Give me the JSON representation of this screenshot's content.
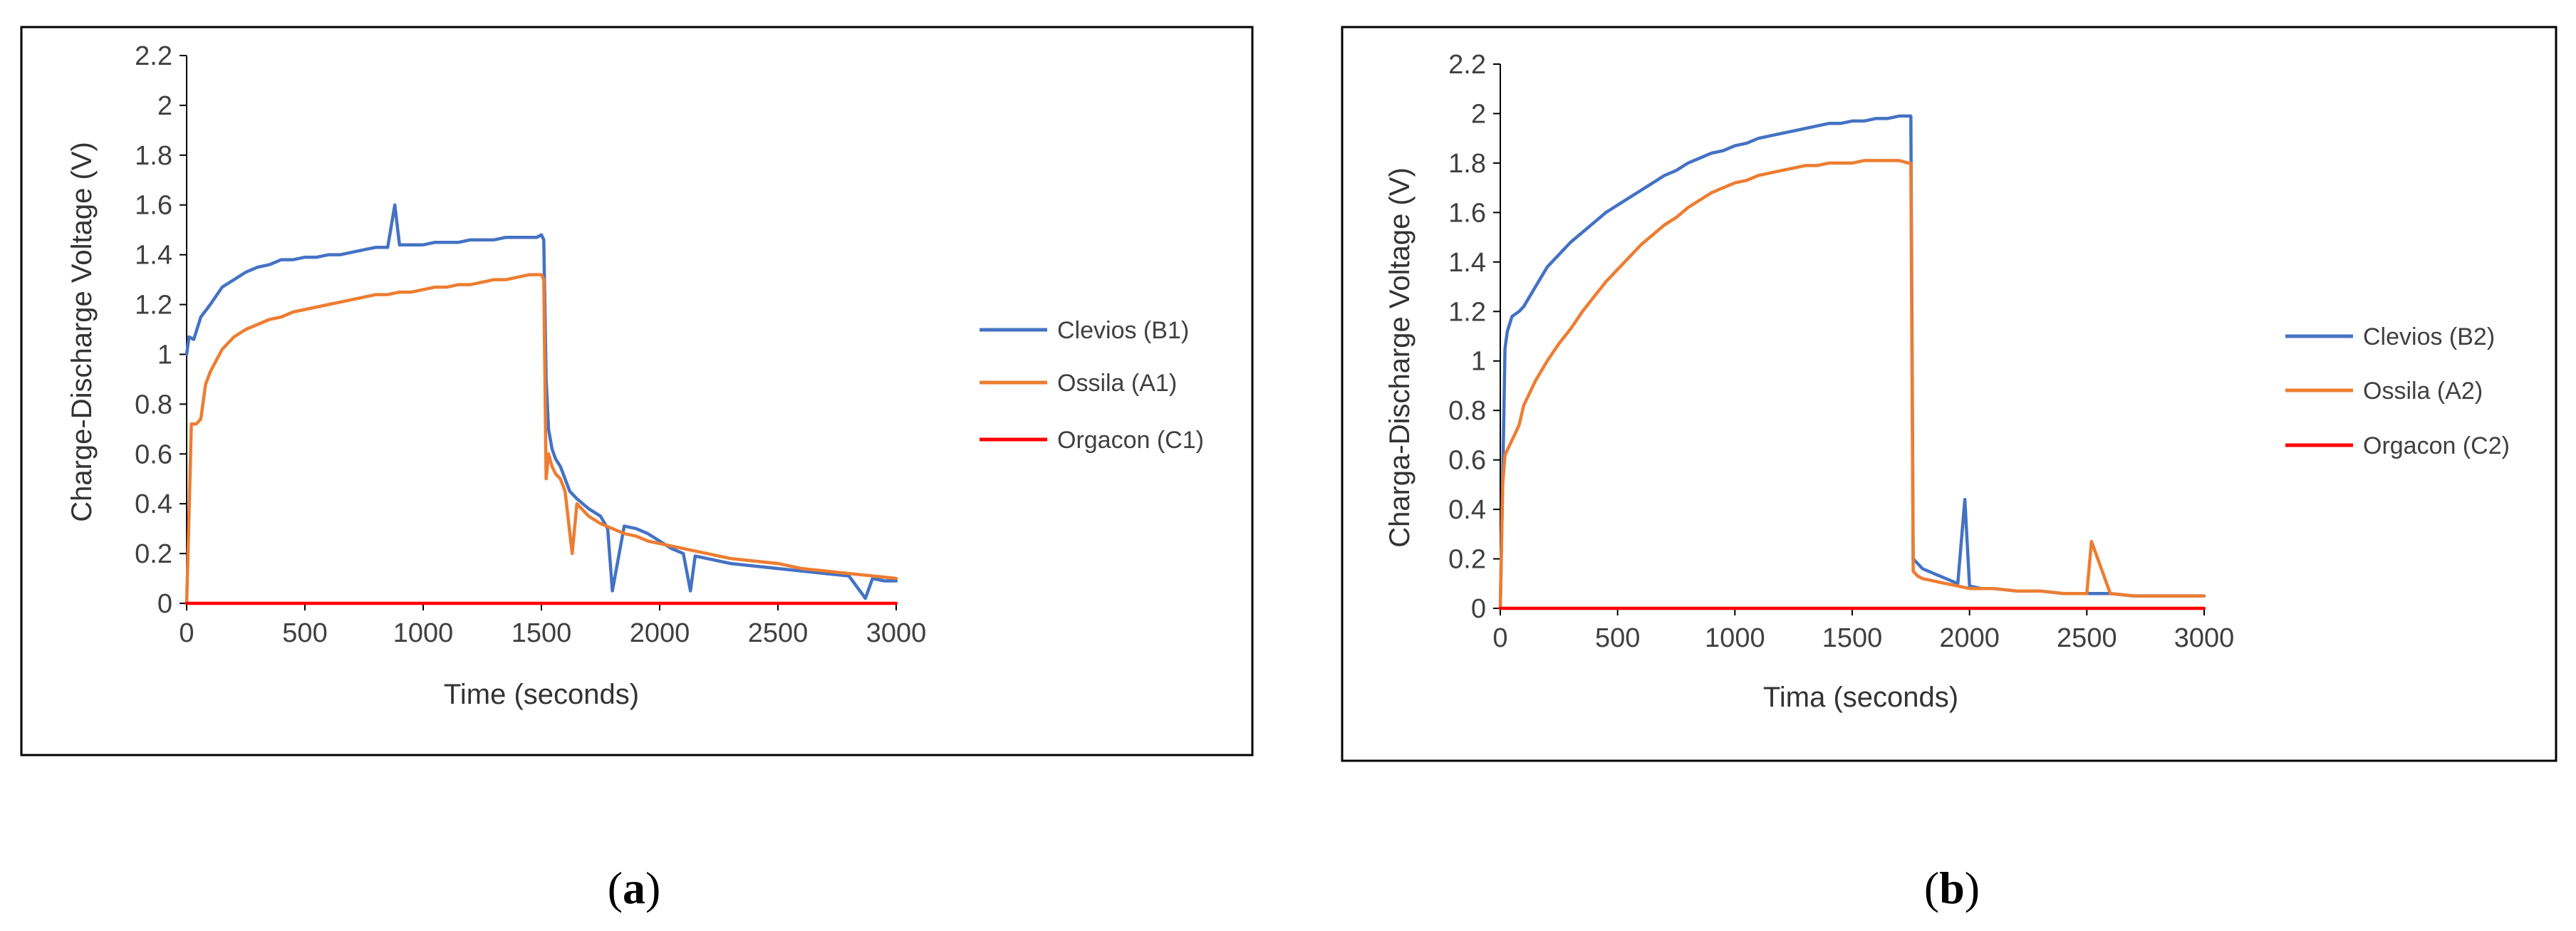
{
  "chart_data": [
    {
      "type": "line",
      "panel_label": "a",
      "xlabel": "Time (seconds)",
      "ylabel": "Charge-Discharge Voltage (V)",
      "xlim": [
        0,
        3000
      ],
      "ylim": [
        0,
        2.2
      ],
      "xticks": [
        0,
        500,
        1000,
        1500,
        2000,
        2500,
        3000
      ],
      "yticks": [
        0,
        0.2,
        0.4,
        0.6,
        0.8,
        1,
        1.2,
        1.4,
        1.6,
        1.8,
        2,
        2.2
      ],
      "legend_position": "right",
      "series": [
        {
          "name": "Clevios (B1)",
          "color": "#4472C4",
          "x": [
            0,
            10,
            30,
            60,
            100,
            150,
            200,
            250,
            300,
            350,
            400,
            450,
            500,
            550,
            600,
            650,
            700,
            750,
            800,
            850,
            880,
            900,
            950,
            1000,
            1050,
            1100,
            1150,
            1200,
            1250,
            1300,
            1350,
            1400,
            1450,
            1480,
            1500,
            1510,
            1520,
            1530,
            1545,
            1560,
            1580,
            1600,
            1620,
            1650,
            1700,
            1750,
            1780,
            1800,
            1850,
            1900,
            1950,
            2000,
            2050,
            2100,
            2130,
            2150,
            2200,
            2300,
            2400,
            2500,
            2600,
            2700,
            2800,
            2870,
            2900,
            2950,
            3000
          ],
          "y": [
            1.0,
            1.07,
            1.06,
            1.15,
            1.2,
            1.27,
            1.3,
            1.33,
            1.35,
            1.36,
            1.38,
            1.38,
            1.39,
            1.39,
            1.4,
            1.4,
            1.41,
            1.42,
            1.43,
            1.43,
            1.6,
            1.44,
            1.44,
            1.44,
            1.45,
            1.45,
            1.45,
            1.46,
            1.46,
            1.46,
            1.47,
            1.47,
            1.47,
            1.47,
            1.48,
            1.46,
            0.9,
            0.7,
            0.62,
            0.58,
            0.55,
            0.5,
            0.45,
            0.42,
            0.38,
            0.35,
            0.3,
            0.05,
            0.31,
            0.3,
            0.28,
            0.25,
            0.22,
            0.2,
            0.05,
            0.19,
            0.18,
            0.16,
            0.15,
            0.14,
            0.13,
            0.12,
            0.11,
            0.02,
            0.1,
            0.09,
            0.09
          ]
        },
        {
          "name": "Ossila (A1)",
          "color": "#ED7D31",
          "x": [
            0,
            10,
            20,
            40,
            60,
            80,
            100,
            150,
            200,
            250,
            300,
            350,
            400,
            450,
            500,
            550,
            600,
            650,
            700,
            750,
            800,
            850,
            900,
            950,
            1000,
            1050,
            1100,
            1150,
            1200,
            1250,
            1300,
            1350,
            1400,
            1450,
            1480,
            1500,
            1510,
            1520,
            1530,
            1545,
            1560,
            1580,
            1600,
            1630,
            1650,
            1700,
            1750,
            1800,
            1850,
            1900,
            1950,
            2000,
            2100,
            2200,
            2300,
            2400,
            2500,
            2600,
            2700,
            2800,
            2900,
            3000
          ],
          "y": [
            0,
            0.35,
            0.72,
            0.72,
            0.74,
            0.88,
            0.93,
            1.02,
            1.07,
            1.1,
            1.12,
            1.14,
            1.15,
            1.17,
            1.18,
            1.19,
            1.2,
            1.21,
            1.22,
            1.23,
            1.24,
            1.24,
            1.25,
            1.25,
            1.26,
            1.27,
            1.27,
            1.28,
            1.28,
            1.29,
            1.3,
            1.3,
            1.31,
            1.32,
            1.32,
            1.32,
            1.3,
            0.5,
            0.6,
            0.55,
            0.52,
            0.5,
            0.45,
            0.2,
            0.4,
            0.35,
            0.32,
            0.3,
            0.28,
            0.27,
            0.25,
            0.24,
            0.22,
            0.2,
            0.18,
            0.17,
            0.16,
            0.14,
            0.13,
            0.12,
            0.11,
            0.1
          ]
        },
        {
          "name": "Orgacon (C1)",
          "color": "#FF0000",
          "x": [
            0,
            3000
          ],
          "y": [
            0,
            0
          ]
        }
      ]
    },
    {
      "type": "line",
      "panel_label": "b",
      "xlabel": "Tima (seconds)",
      "ylabel": "Charga-Discharge Voltage (V)",
      "xlim": [
        0,
        3000
      ],
      "ylim": [
        0,
        2.2
      ],
      "xticks": [
        0,
        500,
        1000,
        1500,
        2000,
        2500,
        3000
      ],
      "yticks": [
        0,
        0.2,
        0.4,
        0.6,
        0.8,
        1,
        1.2,
        1.4,
        1.6,
        1.8,
        2,
        2.2
      ],
      "legend_position": "right",
      "series": [
        {
          "name": "Clevios (B2)",
          "color": "#4472C4",
          "x": [
            0,
            10,
            20,
            30,
            50,
            80,
            100,
            150,
            200,
            250,
            300,
            350,
            400,
            450,
            500,
            550,
            600,
            650,
            700,
            750,
            800,
            850,
            900,
            950,
            1000,
            1050,
            1100,
            1150,
            1200,
            1250,
            1300,
            1350,
            1400,
            1450,
            1500,
            1550,
            1600,
            1650,
            1700,
            1740,
            1745,
            1750,
            1760,
            1780,
            1800,
            1850,
            1900,
            1950,
            1980,
            2000,
            2050,
            2100,
            2200,
            2300,
            2400,
            2500,
            2600,
            2700,
            2800,
            2900,
            3000
          ],
          "y": [
            0,
            0.5,
            1.05,
            1.12,
            1.18,
            1.2,
            1.22,
            1.3,
            1.38,
            1.43,
            1.48,
            1.52,
            1.56,
            1.6,
            1.63,
            1.66,
            1.69,
            1.72,
            1.75,
            1.77,
            1.8,
            1.82,
            1.84,
            1.85,
            1.87,
            1.88,
            1.9,
            1.91,
            1.92,
            1.93,
            1.94,
            1.95,
            1.96,
            1.96,
            1.97,
            1.97,
            1.98,
            1.98,
            1.99,
            1.99,
            1.99,
            1.99,
            0.2,
            0.18,
            0.16,
            0.14,
            0.12,
            0.1,
            0.44,
            0.09,
            0.08,
            0.08,
            0.07,
            0.07,
            0.06,
            0.06,
            0.06,
            0.05,
            0.05,
            0.05,
            0.05
          ]
        },
        {
          "name": "Ossila (A2)",
          "color": "#ED7D31",
          "x": [
            0,
            10,
            20,
            40,
            60,
            80,
            100,
            150,
            200,
            250,
            300,
            350,
            400,
            450,
            500,
            550,
            600,
            650,
            700,
            750,
            800,
            850,
            900,
            950,
            1000,
            1050,
            1100,
            1150,
            1200,
            1250,
            1300,
            1350,
            1400,
            1450,
            1500,
            1550,
            1600,
            1650,
            1700,
            1740,
            1745,
            1750,
            1760,
            1780,
            1800,
            1850,
            1900,
            1950,
            2000,
            2100,
            2200,
            2300,
            2400,
            2500,
            2520,
            2600,
            2700,
            2800,
            2900,
            3000
          ],
          "y": [
            0,
            0.5,
            0.62,
            0.66,
            0.7,
            0.74,
            0.82,
            0.92,
            1.0,
            1.07,
            1.13,
            1.2,
            1.26,
            1.32,
            1.37,
            1.42,
            1.47,
            1.51,
            1.55,
            1.58,
            1.62,
            1.65,
            1.68,
            1.7,
            1.72,
            1.73,
            1.75,
            1.76,
            1.77,
            1.78,
            1.79,
            1.79,
            1.8,
            1.8,
            1.8,
            1.81,
            1.81,
            1.81,
            1.81,
            1.8,
            1.8,
            1.8,
            0.15,
            0.13,
            0.12,
            0.11,
            0.1,
            0.09,
            0.08,
            0.08,
            0.07,
            0.07,
            0.06,
            0.06,
            0.27,
            0.06,
            0.05,
            0.05,
            0.05,
            0.05
          ]
        },
        {
          "name": "Orgacon (C2)",
          "color": "#FF0000",
          "x": [
            0,
            3000
          ],
          "y": [
            0,
            0
          ]
        }
      ]
    }
  ]
}
